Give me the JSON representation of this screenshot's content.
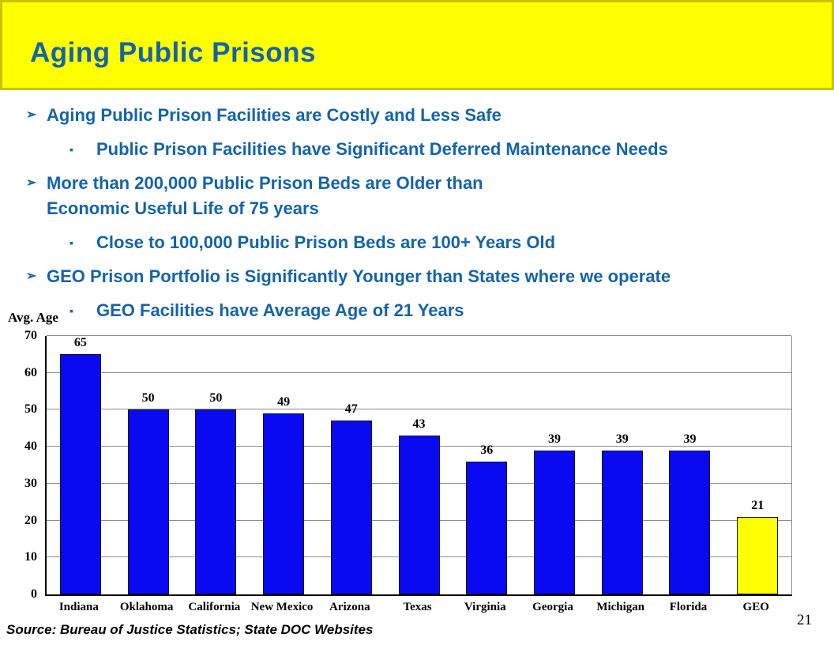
{
  "header": {
    "title": "Aging Public Prisons"
  },
  "bullets": [
    {
      "level": 1,
      "text": "Aging Public Prison Facilities are Costly and Less Safe"
    },
    {
      "level": 2,
      "text": "Public Prison Facilities have Significant Deferred Maintenance Needs"
    },
    {
      "level": 1,
      "text": "More than 200,000 Public Prison Beds are Older than\nEconomic Useful Life of 75 years"
    },
    {
      "level": 2,
      "text": "Close to 100,000 Public Prison Beds are 100+ Years Old"
    },
    {
      "level": 1,
      "text": "GEO Prison Portfolio is Significantly Younger than States where we operate"
    },
    {
      "level": 2,
      "text": "GEO Facilities have Average Age of 21 Years"
    }
  ],
  "icons": {
    "arrow_bullet": "➢",
    "square_bullet": "▪"
  },
  "chart_data": {
    "type": "bar",
    "title": "",
    "ylabel": "Avg. Age",
    "xlabel": "",
    "categories": [
      "Indiana",
      "Oklahoma",
      "California",
      "New Mexico",
      "Arizona",
      "Texas",
      "Virginia",
      "Georgia",
      "Michigan",
      "Florida",
      "GEO"
    ],
    "values": [
      65,
      50,
      50,
      49,
      47,
      43,
      36,
      39,
      39,
      39,
      21
    ],
    "ylim": [
      0,
      70
    ],
    "yticks": [
      0,
      10,
      20,
      30,
      40,
      50,
      60,
      70
    ],
    "grid": true,
    "legend": "none",
    "bar_color": "#0a0af0",
    "highlight_category": "GEO",
    "highlight_color": "#ffff00"
  },
  "footer": {
    "source": "Source: Bureau of Justice Statistics; State DOC Websites",
    "page_number": "21"
  },
  "colors": {
    "accent_blue": "#1463ac",
    "banner_fill": "#ffff00",
    "banner_border": "#c9c400",
    "bar_blue": "#0a0af0",
    "bar_yellow": "#ffff00"
  }
}
